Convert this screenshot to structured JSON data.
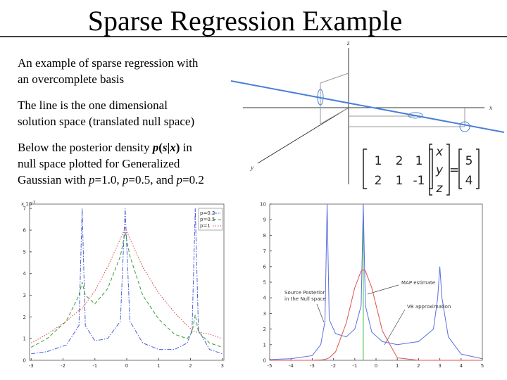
{
  "header": {
    "title": "Sparse Regression Example"
  },
  "bullets": [
    {
      "lines": [
        [
          "An example of sparse regression with"
        ],
        [
          "an overcomplete basis"
        ]
      ]
    },
    {
      "lines": [
        [
          "The line is the one dimensional"
        ],
        [
          "solution space (translated null space)"
        ]
      ]
    },
    {
      "lines": [
        [
          "Below the posterior density ",
          "p",
          "(",
          "s",
          "|",
          "x",
          ")",
          " in"
        ],
        [
          "null space plotted for Generalized"
        ],
        [
          "Gaussian with ",
          "p",
          "=1.0, ",
          "p",
          "=0.5, and ",
          "p",
          "=0.2"
        ]
      ]
    }
  ],
  "diagram": {
    "axis_labels": {
      "z": "z",
      "x": "x",
      "y": "y"
    }
  },
  "equation": {
    "matrix": [
      [
        "1",
        "2",
        "1"
      ],
      [
        "2",
        "1",
        "-1"
      ]
    ],
    "vector": [
      "x",
      "y",
      "z"
    ],
    "equals": "=",
    "result": [
      "5",
      "4"
    ]
  },
  "chart_data": [
    {
      "type": "line",
      "y_scale_label": "x 10",
      "y_scale_exponent": "-3",
      "x": [
        -3,
        -2.5,
        -1.9,
        -1.5,
        -1.4,
        -1.3,
        -1,
        -0.6,
        -0.2,
        -0.05,
        0.1,
        0.5,
        1,
        1.5,
        1.9,
        2.05,
        2.15,
        2.25,
        2.6,
        3
      ],
      "series": [
        {
          "name": "p=0.2",
          "color": "#4a5fd8",
          "linestyle": "dashdot",
          "values": [
            0.3,
            0.4,
            0.7,
            1.6,
            7,
            1.6,
            0.9,
            1.0,
            1.8,
            7,
            1.8,
            0.8,
            0.5,
            0.5,
            0.8,
            1.4,
            7,
            1.4,
            0.5,
            0.3
          ]
        },
        {
          "name": "p=0.5",
          "color": "#3a9a3a",
          "linestyle": "dashed",
          "values": [
            0.6,
            1.0,
            1.8,
            3.0,
            3.6,
            3.0,
            2.6,
            3.3,
            4.8,
            5.9,
            4.8,
            3.0,
            1.9,
            1.2,
            1.0,
            1.3,
            2.1,
            1.3,
            0.8,
            0.6
          ]
        },
        {
          "name": "p=1",
          "color": "#d84040",
          "linestyle": "dotted",
          "values": [
            0.8,
            1.2,
            1.8,
            2.3,
            2.4,
            2.6,
            3.2,
            4.3,
            5.6,
            6.1,
            5.6,
            4.3,
            3.1,
            2.2,
            1.6,
            1.4,
            1.3,
            1.3,
            1.2,
            1.0
          ]
        }
      ],
      "xlim": [
        -3.05,
        3.05
      ],
      "xticks": [
        -3,
        -2,
        -1,
        0,
        1,
        2,
        3
      ],
      "ylim": [
        0,
        7.2
      ],
      "yticks": [
        0,
        1,
        2,
        3,
        4,
        5,
        6,
        7
      ],
      "legend": "upper right"
    },
    {
      "type": "line",
      "x": [
        -5,
        -4,
        -3,
        -2.6,
        -2.4,
        -2.3,
        -2.2,
        -1.9,
        -1.4,
        -1,
        -0.7,
        -0.6,
        -0.5,
        -0.2,
        0.3,
        1,
        2,
        2.7,
        2.9,
        3.0,
        3.1,
        3.4,
        4,
        5
      ],
      "series": [
        {
          "color": "#5a6fe0",
          "linestyle": "solid",
          "values": [
            0.05,
            0.1,
            0.3,
            1,
            2.5,
            10,
            2.6,
            1.7,
            1.5,
            2,
            3.5,
            10,
            3.5,
            1.8,
            1.2,
            1,
            1.2,
            2,
            4,
            6,
            4,
            1.5,
            0.4,
            0.1
          ]
        },
        {
          "color": "#e05050",
          "linestyle": "solid",
          "values": [
            0,
            0,
            0,
            0.02,
            0.06,
            0.1,
            0.16,
            0.55,
            2.38,
            4.64,
            5.72,
            5.8,
            5.72,
            4.64,
            1.88,
            0.16,
            0,
            0,
            0,
            0,
            0,
            0,
            0,
            0
          ]
        }
      ],
      "vlines": [
        {
          "x": -0.6,
          "color": "#33bb33"
        }
      ],
      "annotations": [
        {
          "text": [
            "Source Posterior",
            "in the Null space"
          ]
        },
        {
          "text": [
            "MAP estimate"
          ]
        },
        {
          "text": [
            "VB approximation"
          ]
        }
      ],
      "xlim": [
        -5,
        5
      ],
      "xticks": [
        -5,
        -4,
        -3,
        -2,
        -1,
        0,
        1,
        2,
        3,
        4,
        5
      ],
      "ylim": [
        0,
        10
      ],
      "yticks": [
        0,
        1,
        2,
        3,
        4,
        5,
        6,
        7,
        8,
        9,
        10
      ]
    }
  ]
}
